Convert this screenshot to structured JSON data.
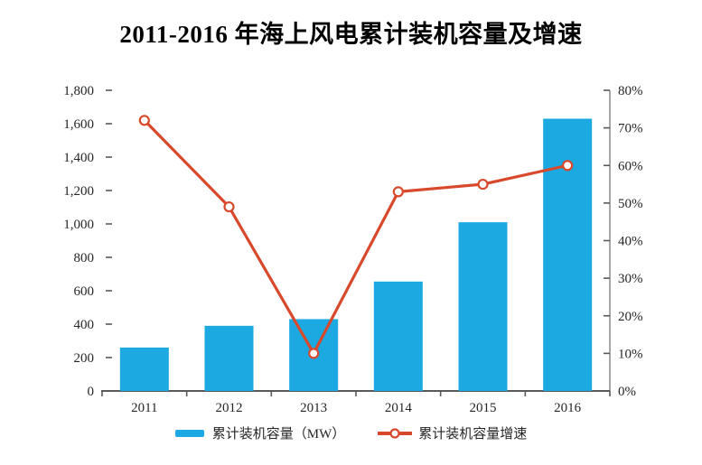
{
  "title": "2011-2016 年海上风电累计装机容量及增速",
  "legend": {
    "capacity": "累计装机容量（MW）",
    "growth": "累计装机容量增速"
  },
  "colors": {
    "bar": "#1CA9E1",
    "line": "#D8492C",
    "axis_text": "#262626"
  },
  "chart_data": {
    "type": "bar+line",
    "categories": [
      "2011",
      "2012",
      "2013",
      "2014",
      "2015",
      "2016"
    ],
    "series": [
      {
        "name": "累计装机容量（MW）",
        "type": "bar",
        "axis": "left",
        "values": [
          260,
          390,
          430,
          655,
          1010,
          1630
        ]
      },
      {
        "name": "累计装机容量增速",
        "type": "line",
        "axis": "right",
        "values_pct": [
          72,
          49,
          10,
          53,
          55,
          60
        ]
      }
    ],
    "left_axis": {
      "min": 0,
      "max": 1800,
      "step": 200,
      "tick_labels": [
        "0",
        "200",
        "400",
        "600",
        "800",
        "1,000",
        "1,200",
        "1,400",
        "1,600",
        "1,800"
      ]
    },
    "right_axis": {
      "min": 0,
      "max": 80,
      "step": 10,
      "unit": "%",
      "tick_labels": [
        "0%",
        "10%",
        "20%",
        "30%",
        "40%",
        "50%",
        "60%",
        "70%",
        "80%"
      ]
    },
    "grid": false,
    "legend_position": "bottom"
  }
}
